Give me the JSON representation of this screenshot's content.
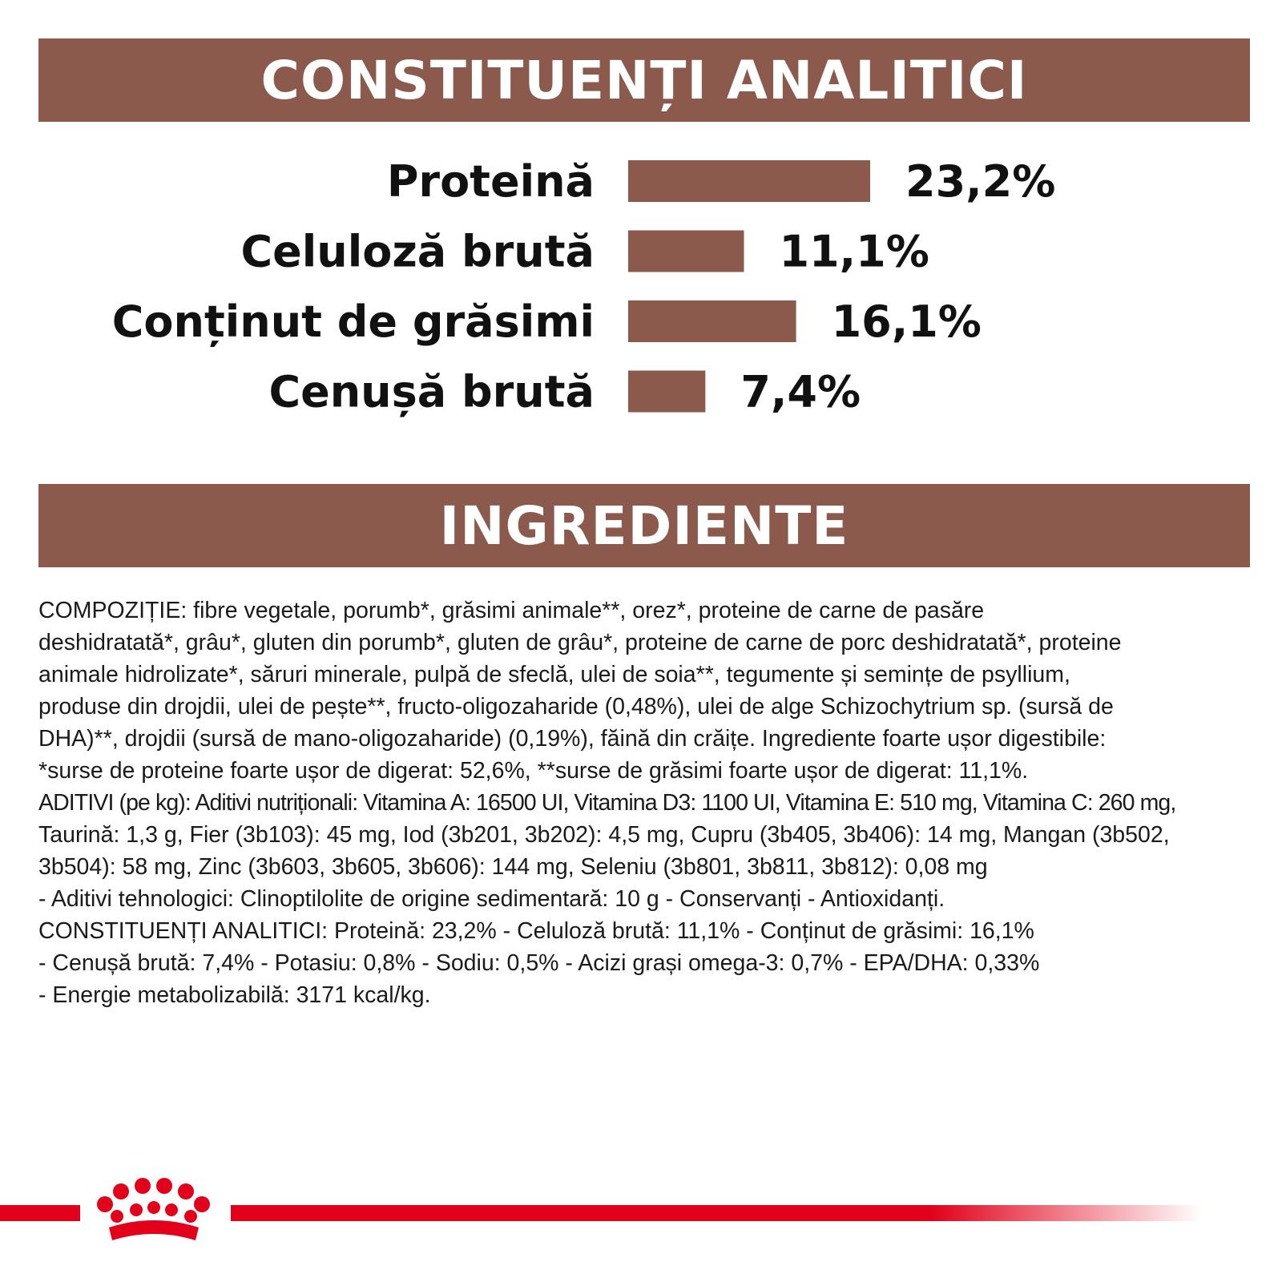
{
  "colors": {
    "brand_brown": "#8b5a4d",
    "brand_red": "#e2001a",
    "text": "#111111"
  },
  "sections": {
    "analytic_title": "CONSTITUENȚI ANALITICI",
    "ingredients_title": "INGREDIENTE"
  },
  "chart_data": {
    "type": "bar",
    "orientation": "horizontal",
    "categories": [
      "Proteină",
      "Celuloză brută",
      "Conținut de grăsimi",
      "Cenușă brută"
    ],
    "values": [
      23.2,
      11.1,
      16.1,
      7.4
    ],
    "value_labels": [
      "23,2%",
      "11,1%",
      "16,1%",
      "7,4%"
    ],
    "unit": "%",
    "title": "",
    "grid": false,
    "legend": "none",
    "bar_color": "#8b5a4d"
  },
  "ingredients_text": [
    "COMPOZIȚIE: fibre vegetale, porumb*, grăsimi animale**, orez*, proteine de carne de pasăre",
    "deshidratată*, grâu*, gluten din porumb*, gluten de grâu*, proteine de carne de porc deshidratată*, proteine",
    "animale hidrolizate*, săruri minerale, pulpă de sfeclă, ulei de soia**, tegumente și semințe de psyllium,",
    "produse din drojdii, ulei de pește**, fructo-oligozaharide (0,48%), ulei de alge Schizochytrium sp. (sursă de",
    "DHA)**, drojdii (sursă de mano-oligozaharide) (0,19%), făină din crăițe. Ingrediente foarte ușor digestibile:",
    "*surse de proteine foarte ușor de digerat: 52,6%, **surse de grăsimi foarte ușor de digerat: 11,1%.",
    "ADITIVI (pe kg): Aditivi nutriționali: Vitamina A: 16500 UI, Vitamina D3: 1100 UI, Vitamina E: 510 mg, Vitamina C: 260 mg,",
    "Taurină: 1,3 g, Fier (3b103): 45 mg, Iod (3b201, 3b202): 4,5 mg, Cupru (3b405, 3b406): 14 mg, Mangan (3b502,",
    "3b504): 58 mg, Zinc (3b603, 3b605, 3b606): 144 mg, Seleniu (3b801, 3b811, 3b812): 0,08 mg",
    "- Aditivi tehnologici: Clinoptilolite de origine sedimentară: 10 g - Conservanți - Antioxidanți.",
    "CONSTITUENȚI ANALITICI: Proteină: 23,2% - Celuloză brută: 11,1% - Conținut de grăsimi: 16,1%",
    "- Cenușă brută: 7,4% - Potasiu: 0,8% - Sodiu: 0,5% - Acizi grași omega-3: 0,7% - EPA/DHA: 0,33%",
    "- Energie metabolizabilă: 3171 kcal/kg."
  ],
  "footer": {
    "logo": "royal-canin-crown-logo"
  }
}
